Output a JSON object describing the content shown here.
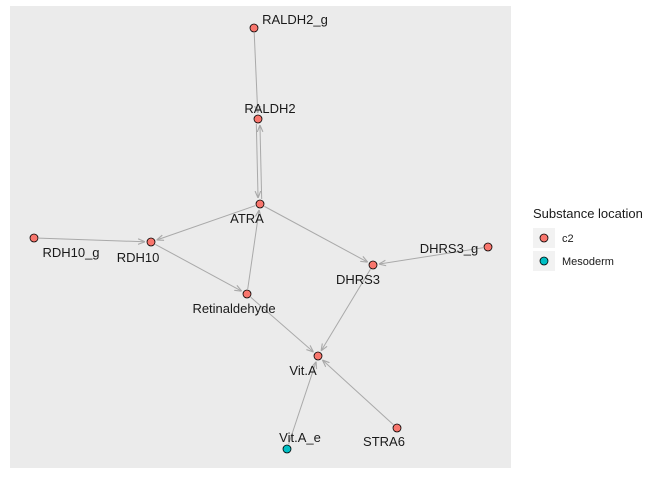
{
  "legend": {
    "title": "Substance location",
    "items": [
      {
        "label": "c2",
        "color": "#f8766d"
      },
      {
        "label": "Mesoderm",
        "color": "#00bfc4"
      }
    ]
  },
  "nodes": [
    {
      "id": "RALDH2_g",
      "label": "RALDH2_g",
      "location": "c2"
    },
    {
      "id": "RALDH2",
      "label": "RALDH2",
      "location": "c2"
    },
    {
      "id": "ATRA",
      "label": "ATRA",
      "location": "c2"
    },
    {
      "id": "RDH10_g",
      "label": "RDH10_g",
      "location": "c2"
    },
    {
      "id": "RDH10",
      "label": "RDH10",
      "location": "c2"
    },
    {
      "id": "DHRS3_g",
      "label": "DHRS3_g",
      "location": "c2"
    },
    {
      "id": "DHRS3",
      "label": "DHRS3",
      "location": "c2"
    },
    {
      "id": "Retinaldehyde",
      "label": "Retinaldehyde",
      "location": "c2"
    },
    {
      "id": "Vit.A",
      "label": "Vit.A",
      "location": "c2"
    },
    {
      "id": "Vit.A_e",
      "label": "Vit.A_e",
      "location": "Mesoderm"
    },
    {
      "id": "STRA6",
      "label": "STRA6",
      "location": "c2"
    }
  ],
  "edges": [
    {
      "from": "RALDH2_g",
      "to": "RALDH2"
    },
    {
      "from": "RALDH2",
      "to": "ATRA"
    },
    {
      "from": "ATRA",
      "to": "RALDH2"
    },
    {
      "from": "ATRA",
      "to": "RDH10"
    },
    {
      "from": "ATRA",
      "to": "DHRS3"
    },
    {
      "from": "RDH10_g",
      "to": "RDH10"
    },
    {
      "from": "RDH10",
      "to": "Retinaldehyde"
    },
    {
      "from": "Retinaldehyde",
      "to": "ATRA"
    },
    {
      "from": "Retinaldehyde",
      "to": "Vit.A"
    },
    {
      "from": "DHRS3_g",
      "to": "DHRS3"
    },
    {
      "from": "DHRS3",
      "to": "Vit.A"
    },
    {
      "from": "Vit.A_e",
      "to": "Vit.A"
    },
    {
      "from": "STRA6",
      "to": "Vit.A"
    }
  ]
}
